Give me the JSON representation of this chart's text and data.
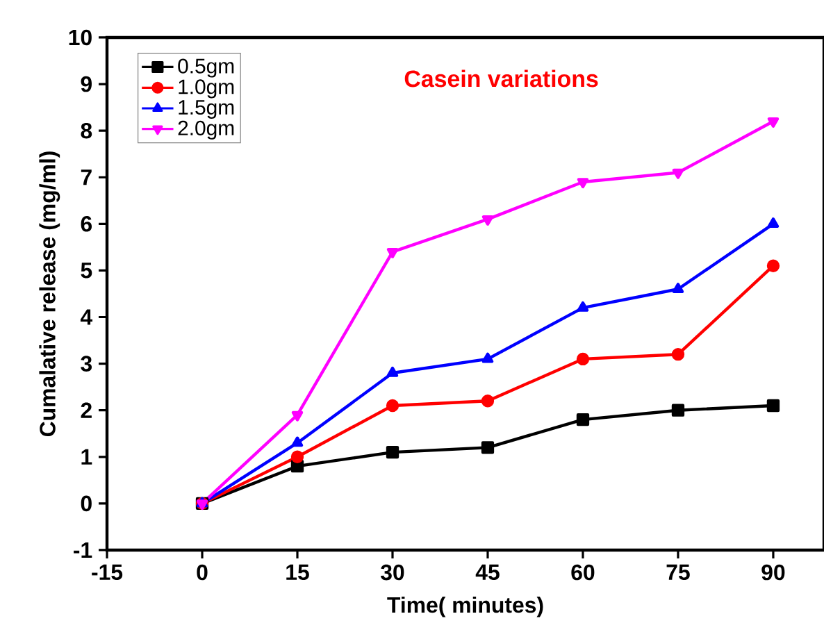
{
  "chart_data": {
    "type": "line",
    "xlabel": "Time(  minutes)",
    "ylabel": "Cumalative release (mg/ml)",
    "annotations": [
      "Casein variations"
    ],
    "x": [
      0,
      15,
      30,
      45,
      60,
      75,
      90
    ],
    "series": [
      {
        "name": "0.5gm",
        "color": "#000000",
        "marker": "square",
        "values": [
          0,
          0.8,
          1.1,
          1.2,
          1.8,
          2.0,
          2.1
        ]
      },
      {
        "name": "1.0gm",
        "color": "#ff0000",
        "marker": "circle",
        "values": [
          0,
          1.0,
          2.1,
          2.2,
          3.1,
          3.2,
          5.1
        ]
      },
      {
        "name": "1.5gm",
        "color": "#0000ff",
        "marker": "triangle",
        "values": [
          0,
          1.3,
          2.8,
          3.1,
          4.2,
          4.6,
          6.0
        ]
      },
      {
        "name": "2.0gm",
        "color": "#ff00ff",
        "marker": "triangle_down",
        "values": [
          0,
          1.9,
          5.4,
          6.1,
          6.9,
          7.1,
          8.2
        ]
      }
    ],
    "xlim": [
      -15,
      98
    ],
    "ylim": [
      -1,
      10
    ],
    "xticks": [
      -15,
      0,
      15,
      30,
      45,
      60,
      75,
      90
    ],
    "yticks": [
      -1,
      0,
      1,
      2,
      3,
      4,
      5,
      6,
      7,
      8,
      9,
      10
    ],
    "legend": "top left",
    "grid": false,
    "line_style": "solid"
  }
}
